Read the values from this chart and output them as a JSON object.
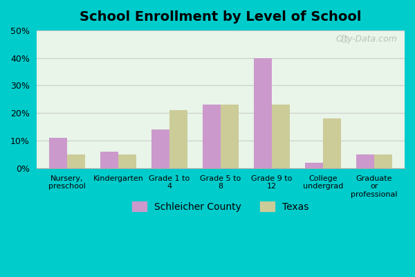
{
  "title": "School Enrollment by Level of School",
  "categories": [
    "Nursery,\npreschool",
    "Kindergarten",
    "Grade 1 to\n4",
    "Grade 5 to\n8",
    "Grade 9 to\n12",
    "College\nundergrad",
    "Graduate\nor\nprofessional"
  ],
  "schleicher": [
    11,
    6,
    14,
    23,
    40,
    2,
    5
  ],
  "texas": [
    5,
    5,
    21,
    23,
    23,
    18,
    5
  ],
  "schleicher_color": "#cc99cc",
  "texas_color": "#cccc99",
  "background_color": "#e8f5e8",
  "outer_bg": "#00cccc",
  "ylim": [
    0,
    50
  ],
  "yticks": [
    0,
    10,
    20,
    30,
    40,
    50
  ],
  "bar_width": 0.35,
  "legend_labels": [
    "Schleicher County",
    "Texas"
  ],
  "grid_color": "#cccccc",
  "watermark": "City-Data.com"
}
